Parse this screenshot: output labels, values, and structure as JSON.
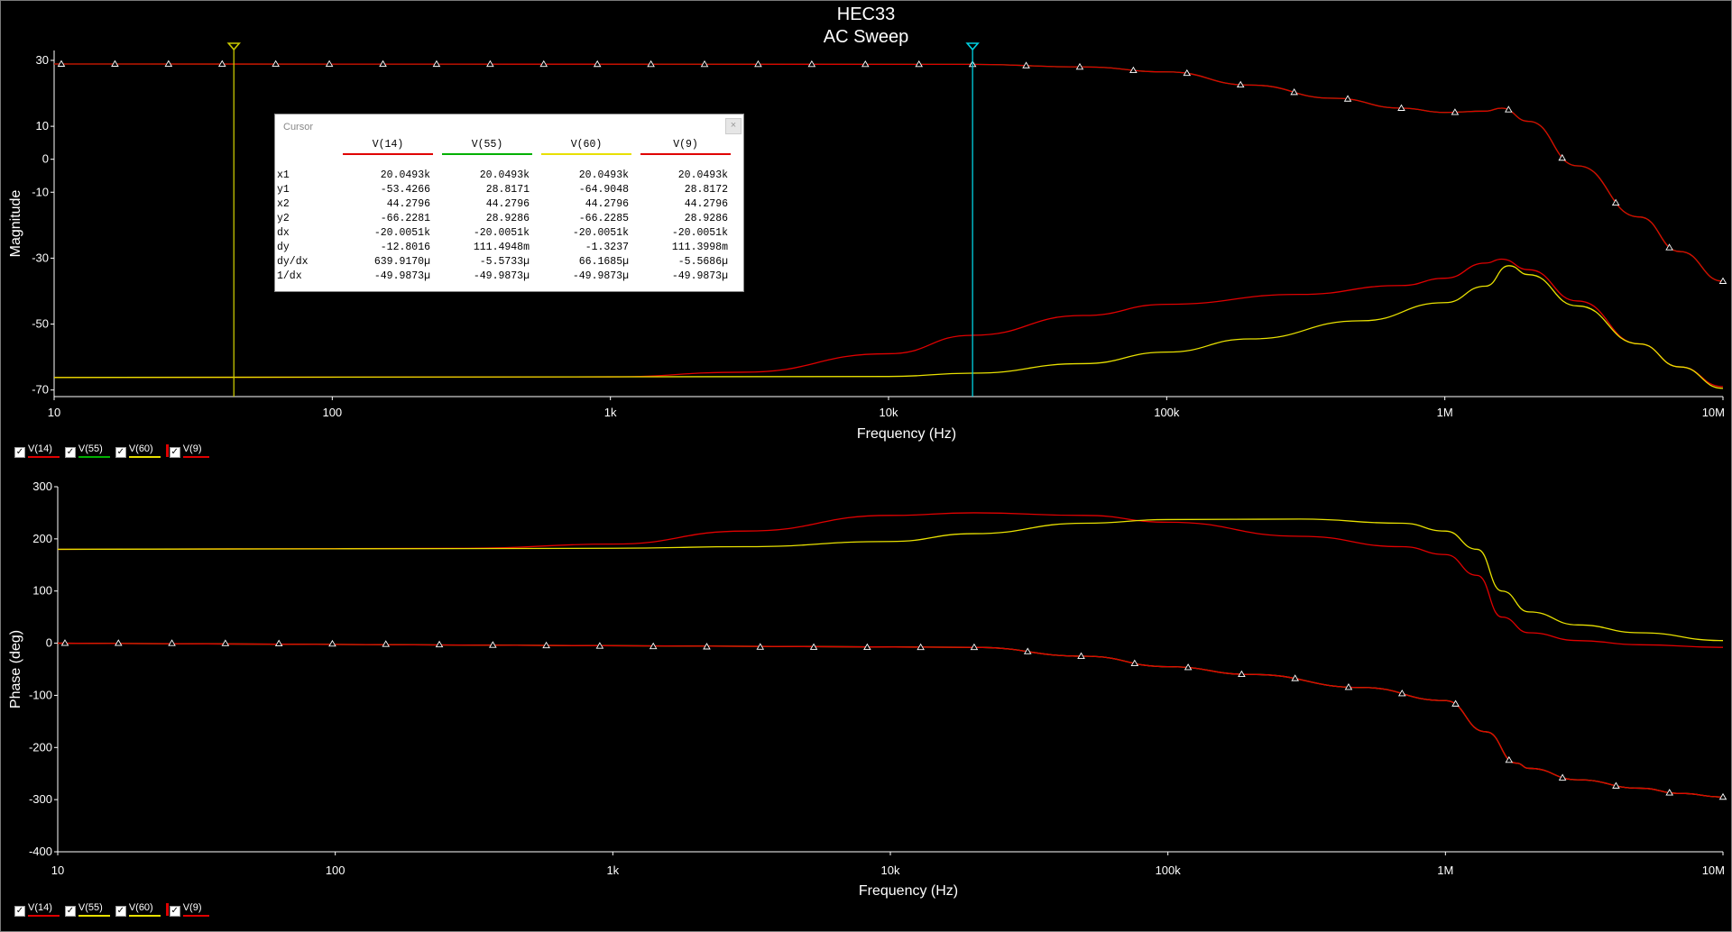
{
  "window": {
    "title": "HEC33",
    "subtitle": "AC Sweep"
  },
  "colors": {
    "V14": "#e00000",
    "V55": "#00b000",
    "V60": "#e8e000",
    "V9": "#e00000",
    "cursor1": "#c8c800",
    "cursor2": "#00d0e0"
  },
  "legend_top": [
    {
      "label": "V(14)",
      "color": "#e00000",
      "checked": "✓",
      "flag": false
    },
    {
      "label": "V(55)",
      "color": "#00b000",
      "checked": "✓",
      "flag": false
    },
    {
      "label": "V(60)",
      "color": "#e8e000",
      "checked": "✓",
      "flag": false
    },
    {
      "label": "V(9)",
      "color": "#e00000",
      "checked": "✓",
      "flag": true
    }
  ],
  "legend_bottom": [
    {
      "label": "V(14)",
      "color": "#e00000",
      "checked": "✓",
      "flag": false
    },
    {
      "label": "V(55)",
      "color": "#e8e000",
      "checked": "✓",
      "flag": false
    },
    {
      "label": "V(60)",
      "color": "#e8e000",
      "checked": "✓",
      "flag": false
    },
    {
      "label": "V(9)",
      "color": "#e00000",
      "checked": "✓",
      "flag": true
    }
  ],
  "cursor_panel": {
    "title": "Cursor",
    "close": "×",
    "columns": [
      {
        "label": "V(14)",
        "color": "#e00000"
      },
      {
        "label": "V(55)",
        "color": "#00b000"
      },
      {
        "label": "V(60)",
        "color": "#e8e000"
      },
      {
        "label": "V(9)",
        "color": "#e00000"
      }
    ],
    "rows": [
      {
        "label": "x1",
        "values": [
          "20.0493k",
          "20.0493k",
          "20.0493k",
          "20.0493k"
        ]
      },
      {
        "label": "y1",
        "values": [
          "-53.4266",
          "28.8171",
          "-64.9048",
          "28.8172"
        ]
      },
      {
        "label": "x2",
        "values": [
          "44.2796",
          "44.2796",
          "44.2796",
          "44.2796"
        ]
      },
      {
        "label": "y2",
        "values": [
          "-66.2281",
          "28.9286",
          "-66.2285",
          "28.9286"
        ]
      },
      {
        "label": "dx",
        "values": [
          "-20.0051k",
          "-20.0051k",
          "-20.0051k",
          "-20.0051k"
        ]
      },
      {
        "label": "dy",
        "values": [
          "-12.8016",
          "111.4948m",
          "-1.3237",
          "111.3998m"
        ]
      },
      {
        "label": "dy/dx",
        "values": [
          "639.9170µ",
          "-5.5733µ",
          "66.1685µ",
          "-5.5686µ"
        ]
      },
      {
        "label": "1/dx",
        "values": [
          "-49.9873µ",
          "-49.9873µ",
          "-49.9873µ",
          "-49.9873µ"
        ]
      }
    ]
  },
  "chart_data": [
    {
      "type": "line",
      "title": "HEC33",
      "subtitle": "AC Sweep",
      "xlabel": "Frequency (Hz)",
      "ylabel": "Magnitude",
      "xscale": "log",
      "xlim": [
        10,
        10000000
      ],
      "ylim": [
        -72,
        33
      ],
      "xticks": [
        10,
        100,
        1000,
        10000,
        100000,
        1000000,
        10000000
      ],
      "xtick_labels": [
        "10",
        "100",
        "1k",
        "10k",
        "100k",
        "1M",
        "10M"
      ],
      "yticks": [
        30,
        10,
        0,
        -10,
        -30,
        -50,
        -70
      ],
      "ytick_labels": [
        "30",
        "10",
        "0",
        "-10",
        "-30",
        "-50",
        "-70"
      ],
      "cursors": [
        44.2796,
        20049.3
      ],
      "series": [
        {
          "name": "V(14)",
          "color": "#e00000",
          "x": [
            10,
            1000,
            3000,
            10000,
            20000,
            50000,
            100000,
            300000,
            700000,
            1000000,
            1400000,
            1600000,
            2000000,
            3000000,
            5000000,
            7000000,
            10000000
          ],
          "y": [
            -66.2,
            -66.0,
            -64.6,
            -59.0,
            -53.4,
            -47.4,
            -44.0,
            -41.0,
            -38.3,
            -36.1,
            -31.5,
            -30.3,
            -33.5,
            -43.0,
            -56.0,
            -63.0,
            -69.0
          ]
        },
        {
          "name": "V(55)",
          "color": "#00b000",
          "x": [
            10,
            20000,
            50000,
            100000,
            200000,
            400000,
            700000,
            1000000,
            1400000,
            1600000,
            2000000,
            3000000,
            5000000,
            7000000,
            10000000
          ],
          "y": [
            28.9,
            28.8,
            28.0,
            26.5,
            22.5,
            18.5,
            15.5,
            14.2,
            14.6,
            15.5,
            11.5,
            -2.0,
            -17.5,
            -28.0,
            -37.0
          ]
        },
        {
          "name": "V(60)",
          "color": "#e8e000",
          "x": [
            10,
            10000,
            20000,
            50000,
            100000,
            200000,
            500000,
            1000000,
            1400000,
            1700000,
            2000000,
            3000000,
            5000000,
            7000000,
            10000000
          ],
          "y": [
            -66.2,
            -65.9,
            -64.9,
            -62.0,
            -58.5,
            -54.5,
            -49.0,
            -43.5,
            -38.5,
            -32.3,
            -35.0,
            -44.5,
            -56.0,
            -63.0,
            -69.5
          ]
        },
        {
          "name": "V(9)",
          "color": "#e00000",
          "markers": true,
          "x": [
            10,
            20000,
            50000,
            100000,
            200000,
            400000,
            700000,
            1000000,
            1400000,
            1600000,
            2000000,
            3000000,
            5000000,
            7000000,
            10000000
          ],
          "y": [
            28.9,
            28.8,
            28.0,
            26.5,
            22.5,
            18.5,
            15.5,
            14.2,
            14.6,
            15.5,
            11.5,
            -2.0,
            -17.5,
            -28.0,
            -37.0
          ]
        }
      ]
    },
    {
      "type": "line",
      "xlabel": "Frequency (Hz)",
      "ylabel": "Phase (deg)",
      "xscale": "log",
      "xlim": [
        10,
        10000000
      ],
      "ylim": [
        -400,
        300
      ],
      "xticks": [
        10,
        100,
        1000,
        10000,
        100000,
        1000000,
        10000000
      ],
      "xtick_labels": [
        "10",
        "100",
        "1k",
        "10k",
        "100k",
        "1M",
        "10M"
      ],
      "yticks": [
        300,
        200,
        100,
        0,
        -100,
        -200,
        -300,
        -400
      ],
      "ytick_labels": [
        "300",
        "200",
        "100",
        "0",
        "-100",
        "-200",
        "-300",
        "-400"
      ],
      "series": [
        {
          "name": "V(14)",
          "color": "#e00000",
          "x": [
            10,
            300,
            1000,
            3000,
            10000,
            20000,
            50000,
            100000,
            300000,
            700000,
            1000000,
            1300000,
            1600000,
            2000000,
            3000000,
            5000000,
            10000000
          ],
          "y": [
            180,
            182,
            190,
            215,
            245,
            250,
            245,
            232,
            205,
            185,
            170,
            130,
            50,
            20,
            5,
            -3,
            -8
          ]
        },
        {
          "name": "V(55)",
          "color": "#e8e000",
          "x": [
            10,
            20000,
            50000,
            100000,
            200000,
            500000,
            1000000,
            1400000,
            1800000,
            2000000,
            3000000,
            5000000,
            7000000,
            10000000
          ],
          "y": [
            0,
            -8,
            -25,
            -45,
            -60,
            -85,
            -110,
            -170,
            -230,
            -240,
            -262,
            -278,
            -288,
            -295
          ]
        },
        {
          "name": "V(60)",
          "color": "#e8e000",
          "x": [
            10,
            1000,
            3000,
            10000,
            20000,
            50000,
            100000,
            300000,
            700000,
            1000000,
            1300000,
            1600000,
            2000000,
            3000000,
            5000000,
            10000000
          ],
          "y": [
            180,
            182,
            185,
            195,
            210,
            230,
            237,
            238,
            230,
            215,
            180,
            100,
            60,
            35,
            20,
            5
          ]
        },
        {
          "name": "V(9)",
          "color": "#e00000",
          "markers": true,
          "x": [
            10,
            20000,
            50000,
            100000,
            200000,
            500000,
            1000000,
            1400000,
            1800000,
            2000000,
            3000000,
            5000000,
            7000000,
            10000000
          ],
          "y": [
            0,
            -8,
            -25,
            -45,
            -60,
            -85,
            -110,
            -170,
            -230,
            -240,
            -262,
            -278,
            -288,
            -295
          ]
        }
      ]
    }
  ]
}
